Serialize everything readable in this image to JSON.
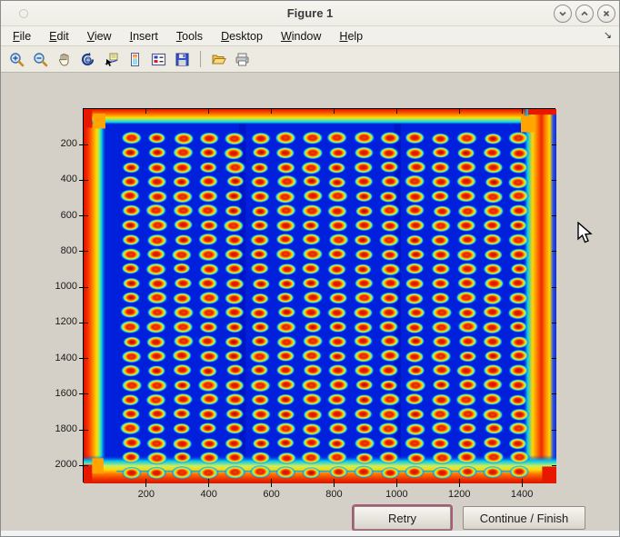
{
  "window": {
    "title": "Figure 1",
    "controls": [
      {
        "name": "minimize-button",
        "icon": "chevron-down-icon"
      },
      {
        "name": "maximize-button",
        "icon": "chevron-up-icon"
      },
      {
        "name": "close-button",
        "icon": "close-icon"
      }
    ]
  },
  "menu": {
    "items": [
      "File",
      "Edit",
      "View",
      "Insert",
      "Tools",
      "Desktop",
      "Window",
      "Help"
    ],
    "overflow_arrow": "↘"
  },
  "toolbar": {
    "icons": [
      "zoom-in",
      "zoom-out",
      "pan-hand",
      "rotate-3d",
      "data-cursor",
      "insert-colorbar",
      "insert-legend",
      "save-figure",
      "open-file",
      "print-figure"
    ]
  },
  "buttons": {
    "retry": "Retry",
    "continue": "Continue / Finish"
  },
  "chart_data": {
    "type": "heatmap",
    "title": "",
    "xlabel": "",
    "ylabel": "",
    "colormap": "jet",
    "description": "Jet-colormap intensity image of a 384-well microplate scan: 16 columns x 24 rows of bright spots (dark-red cores, orange/yellow rings, cyan halos) on a deep blue field, with glowing red-orange plate edges and small orange corner tabs",
    "x_range": [
      0,
      1510
    ],
    "y_range": [
      0,
      2100
    ],
    "x_ticks": [
      200,
      400,
      600,
      800,
      1000,
      1200,
      1400
    ],
    "y_ticks": [
      200,
      400,
      600,
      800,
      1000,
      1200,
      1400,
      1600,
      1800,
      2000
    ],
    "grid": {
      "cols": 16,
      "rows": 24,
      "x0": 0.1,
      "dx": 0.0547,
      "y0": 0.078,
      "dy": 0.0388
    },
    "colors": {
      "field": "#0020dc",
      "halo": "#18c4f0",
      "ring": "#ffd800",
      "spot_core": "#d81400",
      "edge_red": "#e81800",
      "edge_orange": "#ff8c00",
      "tab_orange": "#ffa400"
    }
  }
}
